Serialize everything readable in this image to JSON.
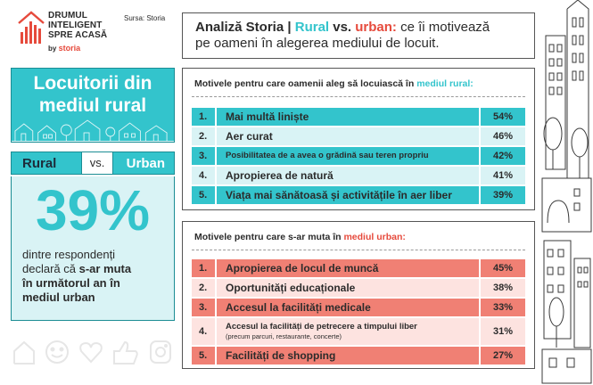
{
  "brand": {
    "title_line1": "DRUMUL",
    "title_line2": "INTELIGENT",
    "title_line3": "SPRE ACASĂ",
    "by": "by",
    "storia": "storia",
    "source": "Sursa: Storia"
  },
  "hero": {
    "title_line1": "Locuitorii din",
    "title_line2": "mediul rural"
  },
  "versus": {
    "left": "Rural",
    "middle": "vs.",
    "right": "Urban"
  },
  "stat": {
    "value": "39%",
    "desc_1": "dintre respondenți",
    "desc_2": "declară că ",
    "desc_2b": "s-ar muta",
    "desc_3": "în următorul an în",
    "desc_4": "mediul urban"
  },
  "header": {
    "part1": "Analiză Storia | ",
    "rural": "Rural",
    "vs": " vs. ",
    "urban": "urban:",
    "part2": " ce îi motivează",
    "line2": "pe oameni în alegerea mediului de locuit."
  },
  "rural_panel": {
    "heading": "Motivele pentru care oamenii aleg să locuiască în ",
    "heading_hl": "mediul rural:",
    "rows": [
      {
        "num": "1.",
        "label": "Mai multă liniște",
        "pct": "54%"
      },
      {
        "num": "2.",
        "label": "Aer curat",
        "pct": "46%"
      },
      {
        "num": "3.",
        "label": "Posibilitatea de a avea o grădină sau teren propriu",
        "pct": "42%"
      },
      {
        "num": "4.",
        "label": "Apropierea de natură",
        "pct": "41%"
      },
      {
        "num": "5.",
        "label": "Viața mai sănătoasă și activitățile în aer liber",
        "pct": "39%"
      }
    ]
  },
  "urban_panel": {
    "heading": "Motivele pentru care s-ar muta în ",
    "heading_hl": "mediul urban:",
    "rows": [
      {
        "num": "1.",
        "label": "Apropierea de locul de muncă",
        "pct": "45%"
      },
      {
        "num": "2.",
        "label": "Oportunități educaționale",
        "pct": "38%"
      },
      {
        "num": "3.",
        "label": "Accesul la facilități medicale",
        "pct": "33%"
      },
      {
        "num": "4.",
        "label": "Accesul la facilități de petrecere a timpului liber",
        "sub": "(precum parcuri, restaurante, concerte)",
        "pct": "31%"
      },
      {
        "num": "5.",
        "label": "Facilități de shopping",
        "pct": "27%"
      }
    ]
  },
  "colors": {
    "rural_accent": "#33c4cc",
    "urban_accent": "#e64a3c",
    "rural_light": "#d9f3f5",
    "urban_light": "#fde3e0"
  },
  "icons": [
    "home-icon",
    "emoji-icon",
    "heart-icon",
    "thumbs-up-icon",
    "instagram-icon"
  ]
}
